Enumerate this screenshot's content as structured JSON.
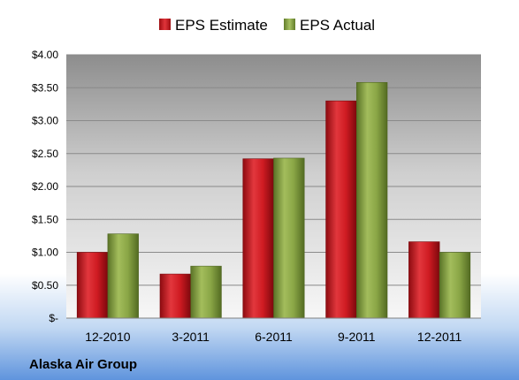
{
  "chart_data": {
    "type": "bar",
    "title": "",
    "xlabel": "",
    "ylabel": "",
    "company": "Alaska Air Group",
    "categories": [
      "12-2010",
      "3-2011",
      "6-2011",
      "9-2011",
      "12-2011"
    ],
    "series": [
      {
        "name": "EPS Estimate",
        "color": "#c0121a",
        "values": [
          1.0,
          0.67,
          2.42,
          3.3,
          1.16
        ]
      },
      {
        "name": "EPS Actual",
        "color": "#7f9a3c",
        "values": [
          1.28,
          0.79,
          2.43,
          3.58,
          1.0
        ]
      }
    ],
    "ylim": [
      0,
      4.0
    ],
    "ytick_values": [
      0,
      0.5,
      1.0,
      1.5,
      2.0,
      2.5,
      3.0,
      3.5,
      4.0
    ],
    "ytick_labels": [
      "$-",
      "$0.50",
      "$1.00",
      "$1.50",
      "$2.00",
      "$2.50",
      "$3.00",
      "$3.50",
      "$4.00"
    ],
    "legend_position": "top",
    "grid": true
  }
}
